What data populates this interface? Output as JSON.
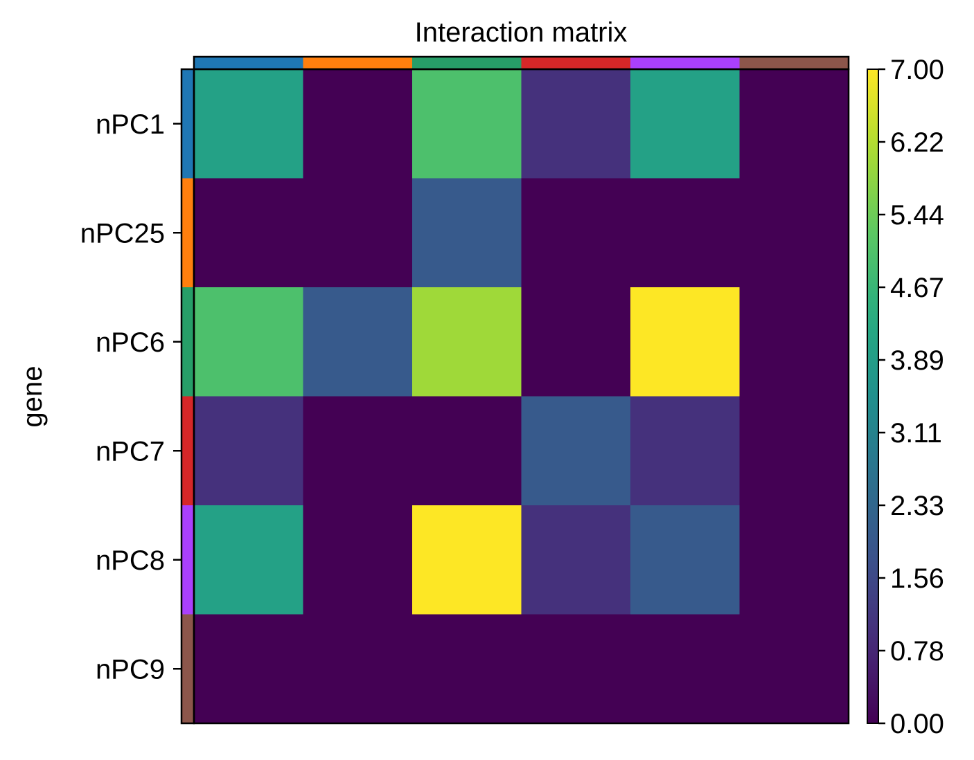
{
  "chart_data": {
    "type": "heatmap",
    "title": "Interaction matrix",
    "xlabel": "",
    "ylabel": "gene",
    "rows": [
      "nPC1",
      "nPC25",
      "nPC6",
      "nPC7",
      "nPC8",
      "nPC9"
    ],
    "columns": [
      "",
      "",
      "",
      "",
      "",
      ""
    ],
    "values": [
      [
        4,
        0,
        5,
        1,
        4,
        0
      ],
      [
        0,
        0,
        2,
        0,
        0,
        0
      ],
      [
        5,
        2,
        6,
        0,
        7,
        0
      ],
      [
        1,
        0,
        0,
        2,
        1,
        0
      ],
      [
        4,
        0,
        7,
        1,
        2,
        0
      ],
      [
        0,
        0,
        0,
        0,
        0,
        0
      ]
    ],
    "group_colors": [
      "#1f77b4",
      "#ff7f0e",
      "#279e68",
      "#d62728",
      "#aa40fc",
      "#8c564b"
    ],
    "colormap": "viridis",
    "colorbar": {
      "min": 0,
      "max": 7,
      "tick_labels": [
        "0.00",
        "0.78",
        "1.56",
        "2.33",
        "3.11",
        "3.89",
        "4.67",
        "5.44",
        "6.22",
        "7.00"
      ]
    },
    "grid": false
  }
}
